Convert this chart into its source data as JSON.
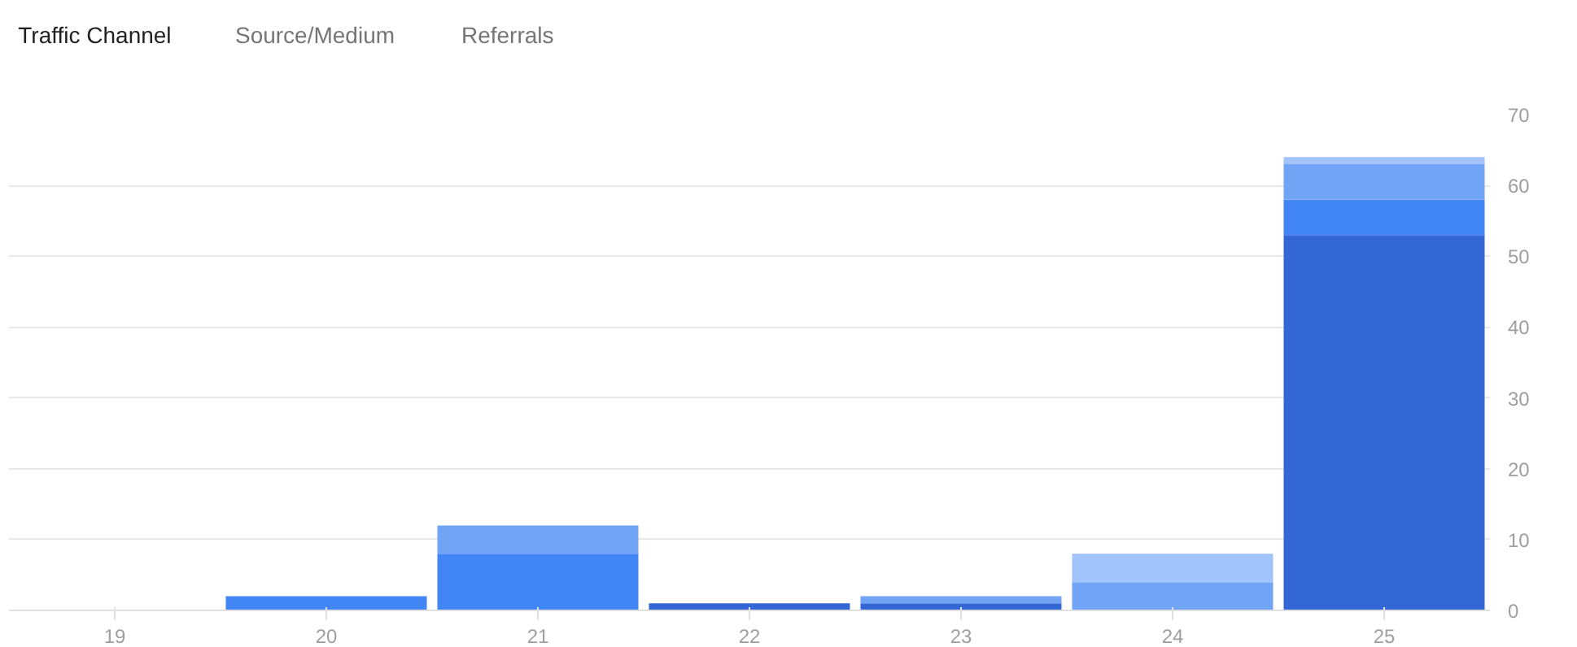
{
  "chart_data": {
    "type": "bar",
    "stacked": true,
    "annotations": [
      "Traffic Channel",
      "Source/Medium",
      "Referrals"
    ],
    "categories": [
      "19",
      "20",
      "21",
      "22",
      "23",
      "24",
      "25"
    ],
    "series": [
      {
        "color": "#3367d6",
        "values": [
          0,
          0,
          0,
          1,
          1,
          0,
          53
        ]
      },
      {
        "color": "#4285f4",
        "values": [
          0,
          2,
          8,
          0,
          0,
          0,
          5
        ]
      },
      {
        "color": "#72a4f6",
        "values": [
          0,
          0,
          4,
          0,
          1,
          4,
          5
        ]
      },
      {
        "color": "#a1c2fa",
        "values": [
          0,
          0,
          0,
          0,
          0,
          4,
          1
        ]
      }
    ],
    "ylim": [
      0,
      70
    ],
    "yticks": [
      0,
      10,
      20,
      30,
      40,
      50,
      60,
      70
    ],
    "grid": "y"
  }
}
